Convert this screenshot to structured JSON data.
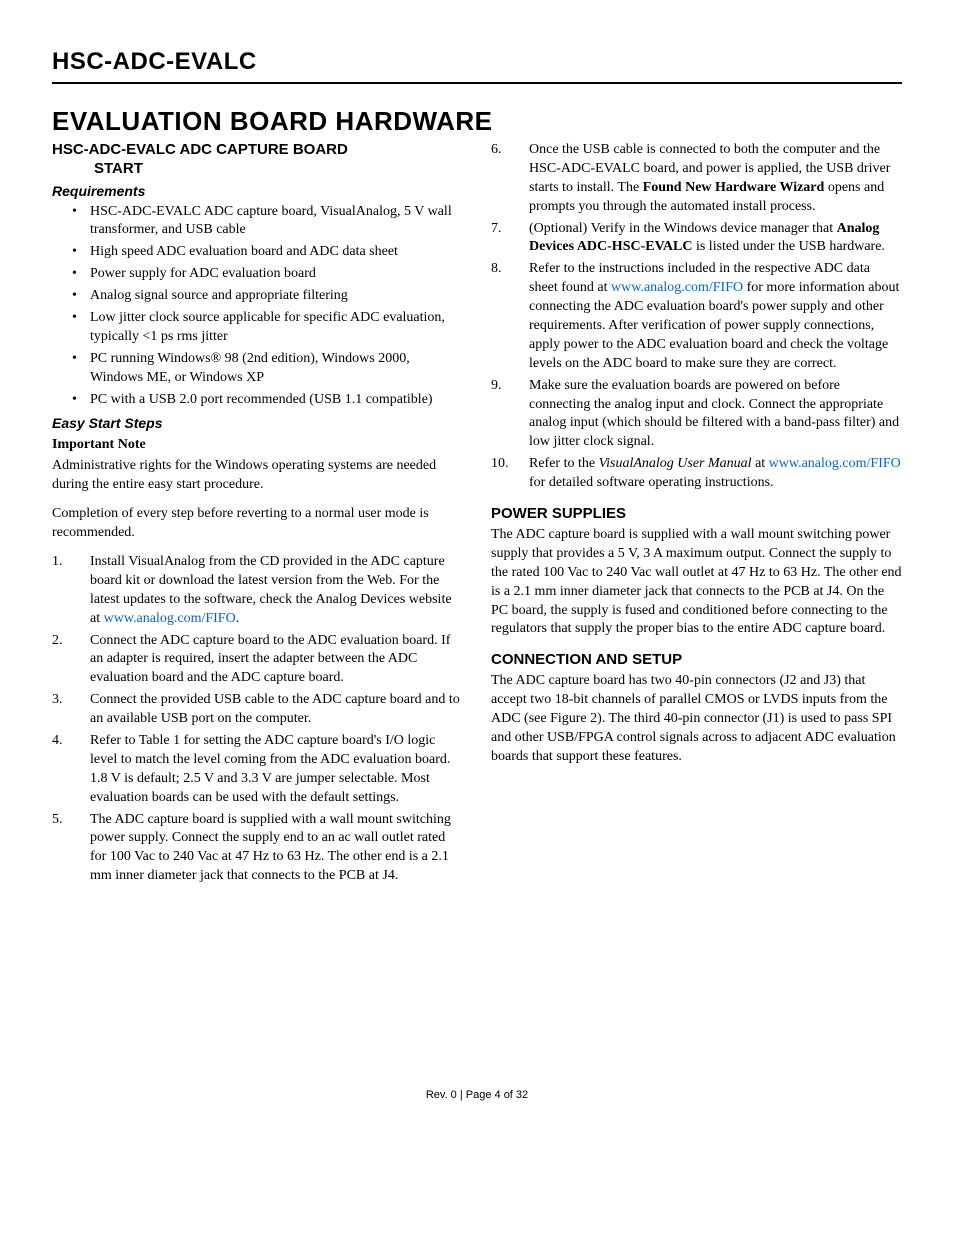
{
  "header": {
    "title": "HSC-ADC-EVALC"
  },
  "main_title": "EVALUATION BOARD HARDWARE",
  "left": {
    "h2_line1": "HSC-ADC-EVALC ADC CAPTURE BOARD",
    "h2_line2": "START",
    "requirements_h": "Requirements",
    "req_items": [
      "HSC-ADC-EVALC ADC capture board, VisualAnalog, 5 V wall transformer, and USB cable",
      "High speed ADC evaluation board and ADC data sheet",
      "Power supply for ADC evaluation board",
      "Analog signal source and appropriate filtering",
      "Low jitter clock source applicable for specific ADC evaluation, typically <1 ps rms jitter",
      "PC running Windows® 98 (2nd edition), Windows 2000, Windows ME, or Windows XP",
      "PC with a USB 2.0 port recommended (USB 1.1 compatible)"
    ],
    "easy_h": "Easy Start Steps",
    "important_h": "Important Note",
    "p1": "Administrative rights for the Windows operating systems are needed during the entire easy start procedure.",
    "p2": "Completion of every step before reverting to a normal user mode is recommended.",
    "steps": {
      "s1a": "Install VisualAnalog from the CD provided in the ADC capture board kit or download the latest version from the Web. For the latest updates to the software, check the Analog Devices website at ",
      "s1link": "www.analog.com/FIFO",
      "s1b": ".",
      "s2": "Connect the ADC capture board to the ADC evaluation board. If an adapter is required, insert the adapter between the ADC evaluation board and the ADC capture board.",
      "s3": "Connect the provided USB cable to the ADC capture board and to an available USB port on the computer.",
      "s4": "Refer to Table 1 for setting the ADC capture board's I/O logic level to match the level coming from the ADC evaluation board. 1.8 V is default; 2.5 V and 3.3 V are jumper selectable. Most evaluation boards can be used with the default settings.",
      "s5": "The ADC capture board is supplied with a wall mount switching power supply. Connect the supply end to an ac wall outlet rated for 100 Vac to 240 Vac at 47 Hz to 63 Hz. The other end is a 2.1 mm inner diameter jack that connects to the PCB at J4."
    }
  },
  "right": {
    "steps": {
      "s6a": "Once the USB cable is connected to both the computer and the HSC-ADC-EVALC board, and power is applied, the USB driver starts to install. The ",
      "s6b": "Found New Hardware Wizard",
      "s6c": " opens and prompts you through the automated install process.",
      "s7a": "(Optional) Verify in the Windows device manager that ",
      "s7b": "Analog Devices ADC-HSC-EVALC",
      "s7c": " is listed under the USB hardware.",
      "s8a": "Refer to the instructions included in the respective ADC data sheet found at ",
      "s8link": "www.analog.com/FIFO",
      "s8b": " for more information about connecting the ADC evaluation board's power supply and other requirements. After verification of power supply connections, apply power to the ADC evaluation board and check the voltage levels on the ADC board to make sure they are correct.",
      "s9": "Make sure the evaluation boards are powered on before connecting the analog input and clock. Connect the appropriate analog input (which should be filtered with a band-pass filter) and low jitter clock signal.",
      "s10a": "Refer to the ",
      "s10b": "VisualAnalog User Manual",
      "s10c": " at ",
      "s10link": "www.analog.com/FIFO",
      "s10d": " for detailed software operating instructions."
    },
    "power_h": "POWER SUPPLIES",
    "power_p": "The ADC capture board is supplied with a wall mount switching power supply that provides a 5 V, 3 A maximum output. Connect the supply to the rated 100 Vac to 240 Vac wall outlet at 47 Hz to 63 Hz. The other end is a 2.1 mm inner diameter jack that connects to the PCB at J4. On the PC board, the supply is fused and conditioned before connecting to the regulators that supply the proper bias to the entire ADC capture board.",
    "conn_h": "CONNECTION AND SETUP",
    "conn_p": "The ADC capture board has two 40-pin connectors (J2 and J3) that accept two 18-bit channels of parallel CMOS or LVDS inputs from the ADC (see Figure 2). The third 40-pin connector (J1) is used to pass SPI and other USB/FPGA control signals across to adjacent ADC evaluation boards that support these features."
  },
  "footer": "Rev. 0 | Page 4 of 32"
}
